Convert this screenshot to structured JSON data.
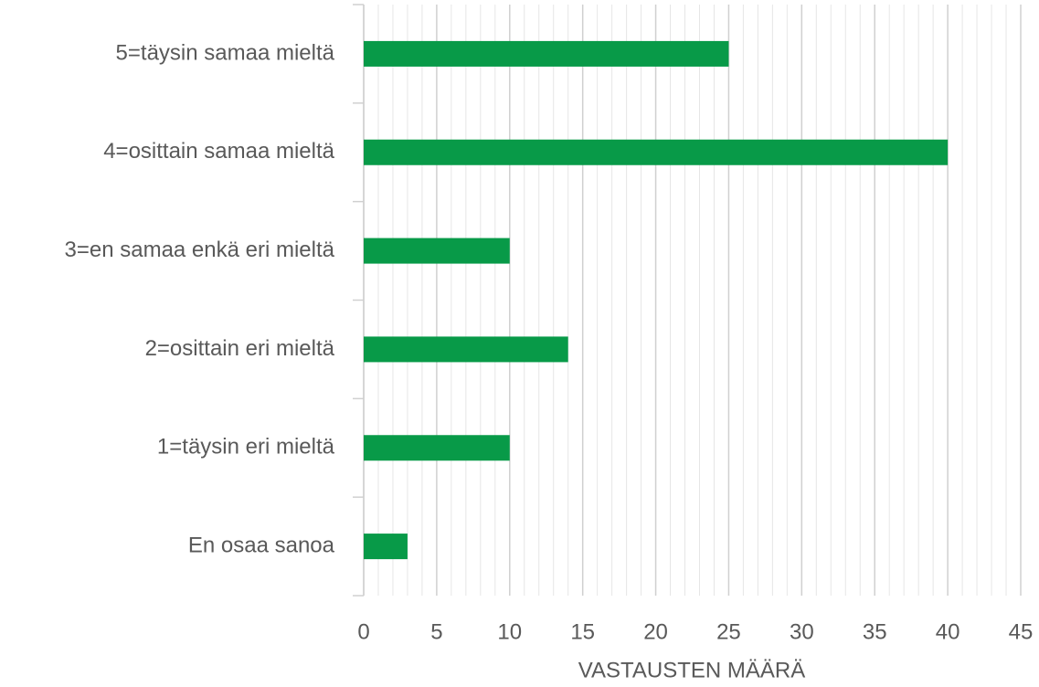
{
  "chart_data": {
    "type": "bar",
    "orientation": "horizontal",
    "x_label": "VASTAUSTEN MÄÄRÄ",
    "categories": [
      "5=täysin samaa mieltä",
      "4=osittain samaa mieltä",
      "3=en samaa enkä eri mieltä",
      "2=osittain eri mieltä",
      "1=täysin eri mieltä",
      "En osaa sanoa"
    ],
    "values": [
      25,
      40,
      10,
      14,
      10,
      3
    ],
    "color": "#089a48",
    "xlim": [
      0,
      45
    ],
    "xticks": [
      0,
      5,
      10,
      15,
      20,
      25,
      30,
      35,
      40,
      45
    ],
    "grid": true,
    "minor_grid": true
  }
}
